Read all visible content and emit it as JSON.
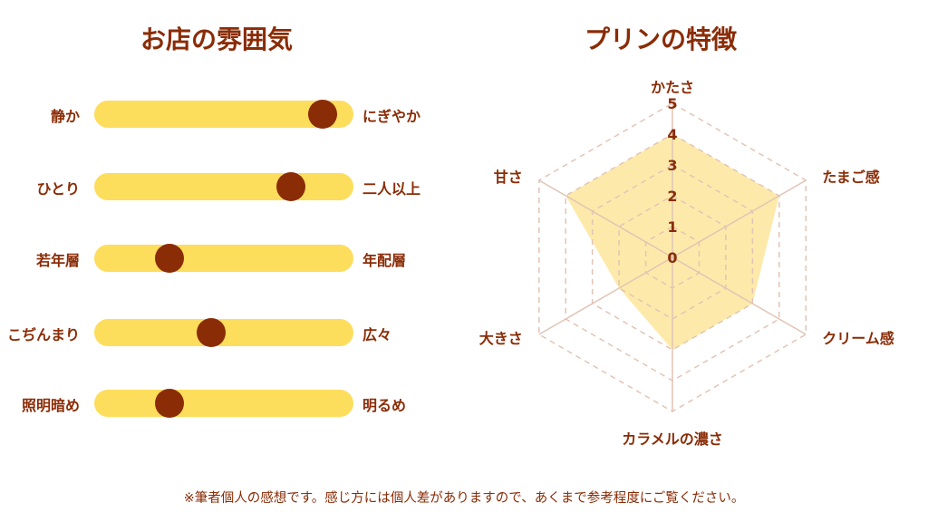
{
  "atmosphere": {
    "title": "お店の雰囲気",
    "sliders": [
      {
        "left": "静か",
        "right": "にぎやか",
        "value": 0.88
      },
      {
        "left": "ひとり",
        "right": "二人以上",
        "value": 0.76
      },
      {
        "left": "若年層",
        "right": "年配層",
        "value": 0.29
      },
      {
        "left": "こぢんまり",
        "right": "広々",
        "value": 0.45
      },
      {
        "left": "照明暗め",
        "right": "明るめ",
        "value": 0.29
      }
    ]
  },
  "chart_data": {
    "type": "radar",
    "title": "プリンの特徴",
    "axes": [
      "かたさ",
      "たまご感",
      "クリーム感",
      "カラメルの濃さ",
      "大きさ",
      "甘さ"
    ],
    "values": [
      4,
      4,
      3,
      3,
      2,
      4
    ],
    "ticks": [
      "0",
      "1",
      "2",
      "3",
      "4",
      "5"
    ],
    "range": [
      0,
      5
    ],
    "fill_color": "#fde9a6",
    "grid_color": "#e2c4b4"
  },
  "note": "※筆者個人の感想です。感じ方には個人差がありますので、あくまで参考程度にご覧ください。",
  "colors": {
    "accent": "#8a2c06",
    "track": "#fddd5c"
  }
}
